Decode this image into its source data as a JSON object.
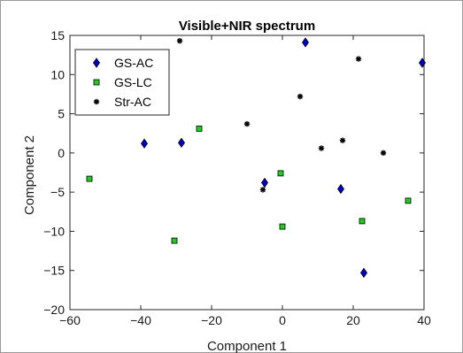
{
  "chart_data": {
    "type": "scatter",
    "title": "Visible+NIR  spectrum",
    "xlabel": "Component 1",
    "ylabel": "Component 2",
    "xlim": [
      -60,
      40
    ],
    "ylim": [
      -20,
      15
    ],
    "x_ticks": [
      -60,
      -40,
      -20,
      0,
      20,
      40
    ],
    "y_ticks": [
      -20,
      -15,
      -10,
      -5,
      0,
      5,
      10,
      15
    ],
    "x_tick_labels": [
      "−60",
      "−40",
      "−20",
      "0",
      "20",
      "40"
    ],
    "y_tick_labels": [
      "−20",
      "−15",
      "−10",
      "−5",
      "0",
      "5",
      "10",
      "15"
    ],
    "grid": false,
    "legend_position": "top-left",
    "series": [
      {
        "name": "GS-AC",
        "marker": "diamond",
        "color": "#0000cc",
        "points": [
          [
            -39,
            1.2
          ],
          [
            -28.5,
            1.3
          ],
          [
            -5,
            -3.8
          ],
          [
            6.5,
            14.1
          ],
          [
            16.5,
            -4.6
          ],
          [
            23,
            -15.3
          ],
          [
            39.5,
            11.5
          ]
        ]
      },
      {
        "name": "GS-LC",
        "marker": "square",
        "color": "#22cc22",
        "points": [
          [
            -54.5,
            -3.3
          ],
          [
            -30.5,
            -11.2
          ],
          [
            -23.5,
            3.1
          ],
          [
            -0.5,
            -2.6
          ],
          [
            0,
            -9.4
          ],
          [
            22.5,
            -8.7
          ],
          [
            35.5,
            -6.1
          ]
        ]
      },
      {
        "name": "Str-AC",
        "marker": "asterisk",
        "color": "#000000",
        "points": [
          [
            -29,
            14.3
          ],
          [
            -10,
            3.7
          ],
          [
            -5.5,
            -4.7
          ],
          [
            5,
            7.2
          ],
          [
            11,
            0.6
          ],
          [
            17,
            1.6
          ],
          [
            21.5,
            12
          ],
          [
            28.5,
            0
          ]
        ]
      }
    ]
  }
}
